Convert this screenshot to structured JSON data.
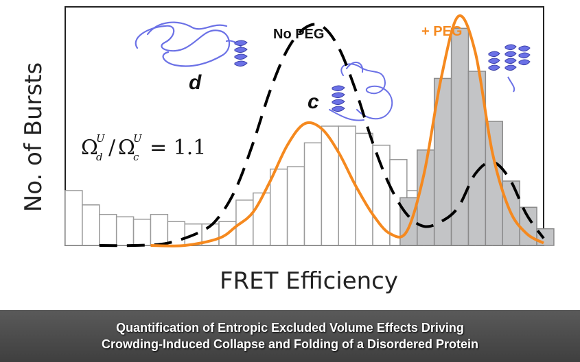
{
  "chart_data": {
    "type": "bar",
    "xlabel": "FRET Efficiency",
    "ylabel": "No. of Bursts",
    "xlim": [
      0,
      28
    ],
    "ylim": [
      0,
      100
    ],
    "grid": false,
    "series": [
      {
        "name": "No PEG",
        "kind": "histogram",
        "style": "white bars, gray outline",
        "values": [
          23,
          17,
          13,
          12,
          11,
          13,
          10,
          9,
          9,
          10,
          19,
          22,
          32,
          33,
          43,
          50,
          50,
          47,
          42,
          36,
          23,
          17,
          8,
          6,
          5,
          4,
          4,
          4
        ]
      },
      {
        "name": "+ PEG",
        "kind": "histogram",
        "style": "gray bars",
        "values": [
          0,
          0,
          0,
          0,
          0,
          0,
          0,
          0,
          0,
          0,
          0,
          0,
          0,
          0,
          0,
          0,
          0,
          0,
          0,
          0,
          20,
          40,
          70,
          91,
          73,
          52,
          27,
          16,
          7
        ]
      },
      {
        "name": "No PEG fit",
        "kind": "curve",
        "style": "black dashed",
        "x": [
          2,
          4,
          6,
          8,
          9,
          10,
          11,
          12,
          13,
          14,
          15,
          16,
          17,
          18,
          19,
          20,
          21,
          22,
          23,
          24,
          25,
          26,
          27,
          28
        ],
        "y": [
          0,
          0,
          1,
          6,
          12,
          24,
          43,
          65,
          82,
          91,
          92,
          83,
          65,
          43,
          25,
          13,
          8,
          10,
          16,
          30,
          35,
          28,
          13,
          3
        ]
      },
      {
        "name": "+ PEG fit",
        "kind": "curve",
        "style": "orange solid",
        "x": [
          5,
          7,
          9,
          10,
          11,
          12,
          13,
          14,
          15,
          16,
          17,
          18,
          19,
          20,
          21,
          22,
          23,
          24,
          25,
          26,
          27,
          28
        ],
        "y": [
          0,
          0,
          3,
          8,
          14,
          27,
          42,
          51,
          49,
          39,
          25,
          13,
          5,
          6,
          30,
          70,
          96,
          81,
          39,
          15,
          5,
          1
        ]
      }
    ],
    "annotations": {
      "no_peg_label": "No PEG",
      "peg_label": "+ PEG",
      "state_d": "d",
      "state_c": "c",
      "equation": "Ω_d^U/Ω_c^U = 1.1",
      "equation_parts": {
        "omega": "Ω",
        "sub_d": "d",
        "sub_c": "c",
        "sup": "U",
        "slash": "/",
        "rhs": "= 1.1"
      }
    },
    "colors": {
      "peg": "#f5891f",
      "no_peg": "#000000",
      "peg_bars": "#c3c4c6",
      "protein": "#6b71e6"
    }
  },
  "caption": {
    "line1": "Quantification of Entropic Excluded Volume Effects Driving",
    "line2": "Crowding-Induced Collapse and Folding of a Disordered Protein"
  }
}
